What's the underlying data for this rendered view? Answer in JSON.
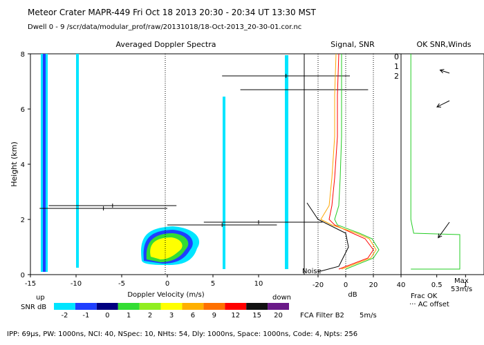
{
  "header": {
    "line1": "Meteor Crater  MAPR-449  Fri Oct 18 2013 20:30 - 20:34 UT 13:30 MST",
    "line2": "Dwell  0 - 9   /scr/data/modular_prof/raw/20131018/18-Oct-2013_20-30-01.cor.nc"
  },
  "panels": {
    "spectra_title": "Averaged Doppler Spectra",
    "signal_title": "Signal, SNR",
    "ok_title": "OK SNR,Winds"
  },
  "beam_labels": [
    "0",
    "1",
    "2"
  ],
  "colors": {
    "beam0": "#ff0000",
    "beam1": "#ffa500",
    "beam2": "#22cc22",
    "spectra_cyan": "#00e5ff",
    "spectra_blue": "#1f3fff",
    "spectra_green": "#33dd33",
    "spectra_yellow": "#ffff00"
  },
  "axes": {
    "ylabel": "Height (km)",
    "ytick_labels": [
      "0",
      "2",
      "4",
      "6",
      "8"
    ],
    "velocity_xlabel": "Doppler Velocity (m/s)",
    "velocity_tick_labels": [
      "-15",
      "-10",
      "-5",
      "0",
      "5",
      "10"
    ],
    "up_label": "up",
    "down_label": "down",
    "db_xlabel": "dB",
    "db_tick_labels": [
      "-20",
      "0",
      "20",
      "40"
    ],
    "frac_tick_labels": [
      "0.5",
      "1"
    ],
    "noise_label": "Noise"
  },
  "colorbar": {
    "label": "SNR dB",
    "values": [
      "-2",
      "-1",
      "0",
      "1",
      "2",
      "3",
      "6",
      "9",
      "12",
      "15",
      "20"
    ],
    "colors": [
      "#00e5ff",
      "#1f3fff",
      "#000080",
      "#33dd33",
      "#90ee20",
      "#ffff00",
      "#ffb000",
      "#ff7000",
      "#ff0000",
      "#111111",
      "#6a1a88"
    ]
  },
  "legend_bottom": {
    "frac_ok": "Frac OK",
    "ac_offset": "··· AC offset",
    "max_label": "Max",
    "max_value": "53m/s",
    "filter": "FCA Filter B2",
    "filter_speed": "5m/s"
  },
  "footer": {
    "params": "IPP: 69μs,  PW: 1000ns,  NCI: 40,  NSpec: 10,  NHts: 54,  Dly: 1000ns,  Space: 1000ns,  Code: 4,  Npts: 256"
  },
  "chart_data": {
    "type": "heatmap",
    "x_range": [
      -15,
      15
    ],
    "y_range": [
      0,
      8
    ],
    "db_range": [
      -30,
      40
    ],
    "frac_range": [
      0,
      1.2
    ],
    "snr_series": [
      {
        "name": "0",
        "points": [
          [
            -5,
            0.2
          ],
          [
            16,
            0.6
          ],
          [
            20,
            0.9
          ],
          [
            14,
            1.3
          ],
          [
            5,
            1.5
          ],
          [
            -8,
            1.8
          ],
          [
            -12,
            2.0
          ],
          [
            -10,
            2.5
          ],
          [
            -8,
            3.5
          ],
          [
            -6,
            5
          ],
          [
            -6,
            6.5
          ],
          [
            -5,
            8
          ]
        ]
      },
      {
        "name": "1",
        "points": [
          [
            -3,
            0.2
          ],
          [
            18,
            0.6
          ],
          [
            22,
            0.9
          ],
          [
            17,
            1.3
          ],
          [
            8,
            1.5
          ],
          [
            -10,
            1.8
          ],
          [
            -18,
            2.0
          ],
          [
            -12,
            2.5
          ],
          [
            -10,
            3.5
          ],
          [
            -8,
            5
          ],
          [
            -8,
            6.5
          ],
          [
            -7,
            8
          ]
        ]
      },
      {
        "name": "2",
        "points": [
          [
            0,
            0.2
          ],
          [
            20,
            0.6
          ],
          [
            24,
            0.9
          ],
          [
            19,
            1.3
          ],
          [
            10,
            1.5
          ],
          [
            -6,
            1.8
          ],
          [
            -8,
            2.0
          ],
          [
            -5,
            2.5
          ],
          [
            -4,
            3.5
          ],
          [
            -3,
            5
          ],
          [
            -3,
            6.5
          ],
          [
            -3,
            8
          ]
        ]
      }
    ],
    "noise_series": {
      "name": "Noise",
      "points": [
        [
          -20,
          0.1
        ],
        [
          -5,
          0.3
        ],
        [
          -2,
          0.6
        ],
        [
          2,
          1.0
        ],
        [
          0,
          1.5
        ],
        [
          -20,
          2.0
        ],
        [
          -28,
          2.6
        ]
      ]
    },
    "frac_ok_series": {
      "name": "Frac OK",
      "points": [
        [
          0.05,
          0.2
        ],
        [
          0.9,
          0.2
        ],
        [
          0.9,
          1.45
        ],
        [
          0.1,
          1.5
        ],
        [
          0.05,
          2.0
        ],
        [
          0.05,
          8
        ]
      ]
    },
    "wind_barbs": [
      {
        "y": 7.3,
        "u": -15,
        "v": 5
      },
      {
        "y": 6.3,
        "u": -20,
        "v": -10
      },
      {
        "y": 1.9,
        "u": -18,
        "v": -25
      }
    ],
    "error_bars": [
      {
        "y": 7.2,
        "x": 13,
        "xmin": 6,
        "xmax": 20
      },
      {
        "y": 6.7,
        "x": 15,
        "xmin": 8,
        "xmax": 22
      },
      {
        "y": 2.5,
        "x": -6,
        "xmin": -13,
        "xmax": 1
      },
      {
        "y": 2.4,
        "x": -7,
        "xmin": -14,
        "xmax": 0
      },
      {
        "y": 1.9,
        "x": 10,
        "xmin": 4,
        "xmax": 17
      },
      {
        "y": 1.8,
        "x": 6,
        "xmin": 0,
        "xmax": 12
      }
    ]
  }
}
